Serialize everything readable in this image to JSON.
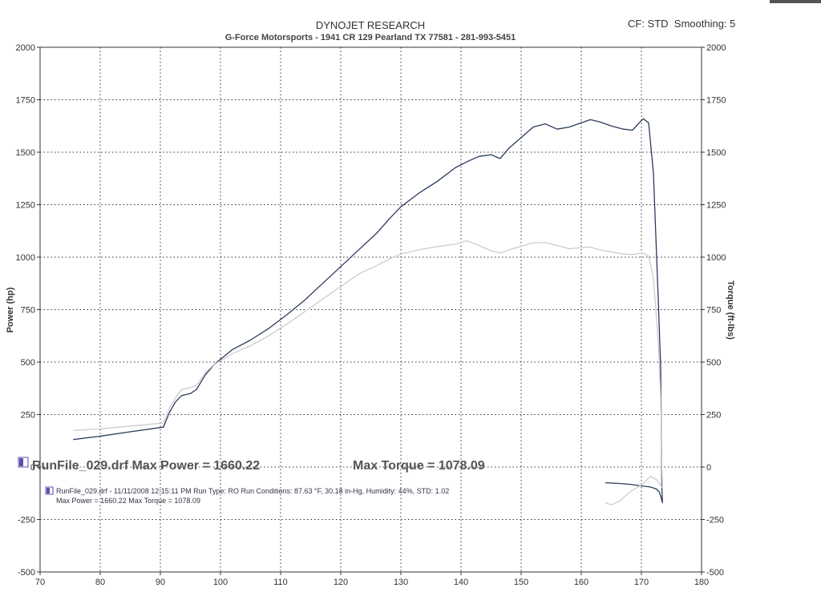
{
  "header": {
    "title": "DYNOJET RESEARCH",
    "subtitle": "G-Force Motorsports - 1941 CR 129 Pearland TX 77581 - 281-993-5451",
    "cf_label": "CF: STD",
    "smoothing_label": "Smoothing: 5"
  },
  "summary": {
    "run_label": "RunFile_029.drf Max Power = 1660.22",
    "torque_label": "Max Torque = 1078.09"
  },
  "legend": {
    "line1": "RunFile_029.drf - 11/11/2008 12:15:11 PM  Run Type: RO  Run Conditions: 87.63 °F, 30.18 in-Hg,  Humidity:  44%, STD: 1.02",
    "line2": "Max Power = 1660.22  Max Torque = 1078.09"
  },
  "colors": {
    "power": "#2b3a5c",
    "torque": "#c8c8d0",
    "grid": "#333333",
    "legend_icon": "#5b4db0"
  },
  "chart_data": {
    "type": "line",
    "ylabel": "Power (hp)",
    "y2label": "Torque (ft-lbs)",
    "xlim": [
      70,
      180
    ],
    "ylim": [
      -500,
      2000
    ],
    "y2lim": [
      -500,
      2000
    ],
    "x_ticks": [
      70,
      80,
      90,
      100,
      110,
      120,
      130,
      140,
      150,
      160,
      170,
      180
    ],
    "y_ticks": [
      -500,
      -250,
      0,
      250,
      500,
      750,
      1000,
      1250,
      1500,
      1750,
      2000
    ],
    "y_tick_labels": [
      "-500",
      "-250",
      "0",
      "250",
      "500",
      "750",
      "1000",
      "1250",
      "1500",
      "1750",
      "2000"
    ],
    "grid": true,
    "series": [
      {
        "axis": "left",
        "points": [
          [
            75.5,
            131
          ],
          [
            80,
            147
          ],
          [
            85,
            168
          ],
          [
            90.5,
            190
          ],
          [
            91.5,
            260
          ],
          [
            92.5,
            310
          ],
          [
            93.5,
            340
          ],
          [
            95,
            350
          ],
          [
            96,
            370
          ],
          [
            97.5,
            440
          ],
          [
            99,
            490
          ],
          [
            100.5,
            525
          ],
          [
            102,
            560
          ],
          [
            105,
            605
          ],
          [
            108,
            660
          ],
          [
            111,
            725
          ],
          [
            114,
            795
          ],
          [
            117,
            875
          ],
          [
            120,
            955
          ],
          [
            123,
            1035
          ],
          [
            126,
            1115
          ],
          [
            128,
            1180
          ],
          [
            130,
            1240
          ],
          [
            133,
            1305
          ],
          [
            136,
            1360
          ],
          [
            139,
            1425
          ],
          [
            141,
            1455
          ],
          [
            143,
            1480
          ],
          [
            145,
            1488
          ],
          [
            146.5,
            1470
          ],
          [
            148,
            1520
          ],
          [
            150,
            1570
          ],
          [
            152,
            1620
          ],
          [
            154,
            1635
          ],
          [
            156,
            1610
          ],
          [
            158,
            1620
          ],
          [
            160,
            1640
          ],
          [
            161.5,
            1655
          ],
          [
            163,
            1645
          ],
          [
            165,
            1625
          ],
          [
            167,
            1610
          ],
          [
            168.5,
            1605
          ],
          [
            170.3,
            1660
          ],
          [
            171.2,
            1640
          ],
          [
            172,
            1400
          ],
          [
            172.8,
            800
          ],
          [
            173.2,
            480
          ],
          [
            173.3,
            200
          ],
          [
            173.4,
            -100
          ],
          [
            173.5,
            -170
          ],
          [
            173,
            -120
          ],
          [
            172.5,
            -105
          ],
          [
            171.5,
            -95
          ],
          [
            170,
            -90
          ],
          [
            168,
            -82
          ],
          [
            166,
            -78
          ],
          [
            164,
            -75
          ]
        ]
      },
      {
        "axis": "right",
        "points": [
          [
            75.5,
            174
          ],
          [
            80,
            182
          ],
          [
            85,
            195
          ],
          [
            90.5,
            210
          ],
          [
            91.5,
            280
          ],
          [
            92.5,
            330
          ],
          [
            93.5,
            370
          ],
          [
            95,
            378
          ],
          [
            96,
            390
          ],
          [
            97.5,
            450
          ],
          [
            99,
            490
          ],
          [
            100.5,
            515
          ],
          [
            102,
            540
          ],
          [
            105,
            578
          ],
          [
            108,
            625
          ],
          [
            111,
            680
          ],
          [
            114,
            740
          ],
          [
            117,
            800
          ],
          [
            120,
            860
          ],
          [
            123,
            920
          ],
          [
            126,
            960
          ],
          [
            128,
            990
          ],
          [
            130,
            1015
          ],
          [
            133,
            1035
          ],
          [
            136,
            1050
          ],
          [
            139,
            1062
          ],
          [
            141,
            1078
          ],
          [
            143,
            1055
          ],
          [
            145,
            1030
          ],
          [
            146.5,
            1020
          ],
          [
            148,
            1035
          ],
          [
            150,
            1052
          ],
          [
            152,
            1068
          ],
          [
            154,
            1070
          ],
          [
            156,
            1055
          ],
          [
            158,
            1040
          ],
          [
            160,
            1045
          ],
          [
            161.5,
            1048
          ],
          [
            163,
            1035
          ],
          [
            165,
            1025
          ],
          [
            167,
            1015
          ],
          [
            168.5,
            1012
          ],
          [
            170.3,
            1020
          ],
          [
            171.2,
            1005
          ],
          [
            172,
            900
          ],
          [
            172.8,
            600
          ],
          [
            173.2,
            340
          ],
          [
            173.3,
            180
          ],
          [
            173.4,
            0
          ],
          [
            173.5,
            -100
          ],
          [
            172.5,
            -60
          ],
          [
            171.5,
            -45
          ],
          [
            170,
            -85
          ],
          [
            168,
            -120
          ],
          [
            166.5,
            -160
          ],
          [
            165,
            -180
          ],
          [
            164,
            -170
          ]
        ]
      }
    ]
  }
}
